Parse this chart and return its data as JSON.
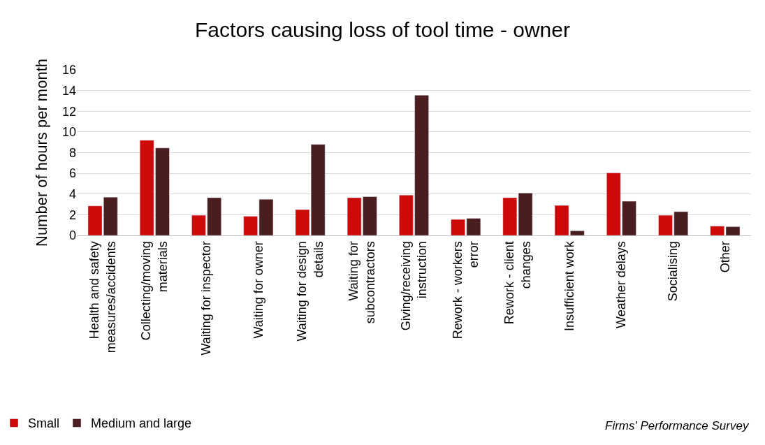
{
  "chart_data": {
    "type": "bar",
    "title": "Factors causing loss of tool time - owner",
    "ylabel": "Number of hours per month",
    "categories": [
      "Health and safety measures/accidents",
      "Collecting/moving materials",
      "Waiting for inspector",
      "Waiting for owner",
      "Waiting for design details",
      "Waiting for subcontractors",
      "Giving/receiving instruction",
      "Rework - workers error",
      "Rework - client changes",
      "Insufficient work",
      "Weather delays",
      "Socialising",
      "Other"
    ],
    "series": [
      {
        "name": "Small",
        "color": "#cc0a0a",
        "values": [
          2.85,
          9.2,
          1.95,
          1.85,
          2.5,
          3.65,
          3.9,
          1.55,
          3.65,
          2.9,
          6.05,
          1.95,
          0.9
        ]
      },
      {
        "name": "Medium and large",
        "color": "#4a1d1f",
        "values": [
          3.7,
          8.45,
          3.65,
          3.5,
          8.8,
          3.75,
          13.55,
          1.65,
          4.1,
          0.45,
          3.3,
          2.3,
          0.85
        ]
      }
    ],
    "ylim": [
      0,
      16
    ],
    "yticks": [
      0,
      2,
      4,
      6,
      8,
      10,
      12,
      14,
      16
    ],
    "grid": "y",
    "legend": "bottom left",
    "annotations": [
      "Firms' Performance Survey"
    ]
  }
}
